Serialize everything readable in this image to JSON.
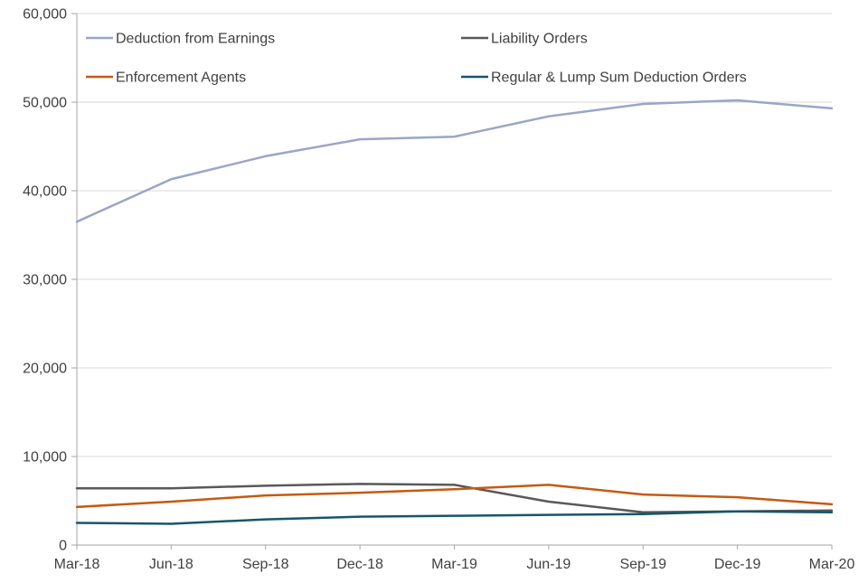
{
  "chart_data": {
    "type": "line",
    "title": "",
    "xlabel": "",
    "ylabel": "",
    "x": [
      "Mar-18",
      "Jun-18",
      "Sep-18",
      "Dec-18",
      "Mar-19",
      "Jun-19",
      "Sep-19",
      "Dec-19",
      "Mar-20"
    ],
    "series": [
      {
        "name": "Deduction from Earnings",
        "color": "#99A6C7",
        "values": [
          36500,
          41300,
          43900,
          45800,
          46100,
          48400,
          49800,
          50200,
          49300
        ]
      },
      {
        "name": "Liability Orders",
        "color": "#595959",
        "values": [
          6400,
          6400,
          6700,
          6900,
          6800,
          4900,
          3700,
          3800,
          3900
        ]
      },
      {
        "name": "Enforcement Agents",
        "color": "#C55A11",
        "values": [
          4300,
          4900,
          5600,
          5900,
          6300,
          6800,
          5700,
          5400,
          4600
        ]
      },
      {
        "name": "Regular & Lump Sum Deduction Orders",
        "color": "#17566B",
        "values": [
          2500,
          2400,
          2900,
          3200,
          3300,
          3400,
          3500,
          3800,
          3700
        ]
      }
    ],
    "ylim": [
      0,
      60000
    ],
    "ytick_step": 10000,
    "ytick_labels": [
      "0",
      "10,000",
      "20,000",
      "30,000",
      "40,000",
      "50,000",
      "60,000"
    ],
    "grid": true,
    "legend_position": "top-inside",
    "grid_color": "#D9D9D9",
    "axis_color": "#A6A6A6",
    "text_color": "#404040"
  }
}
